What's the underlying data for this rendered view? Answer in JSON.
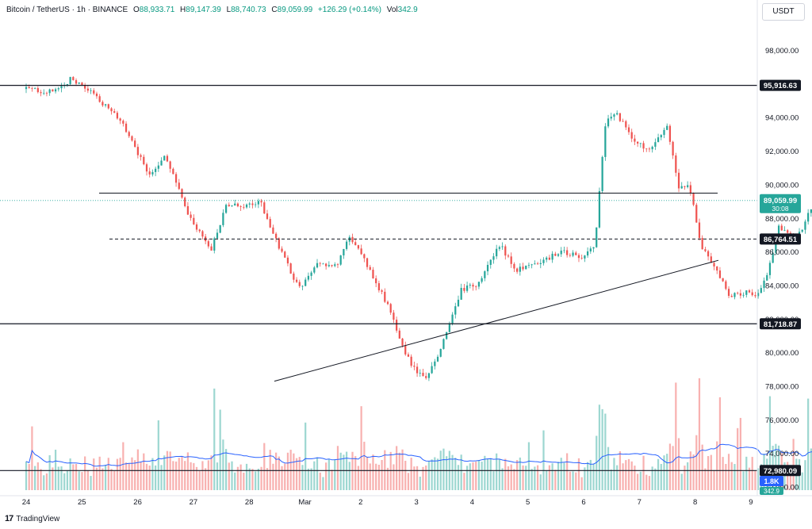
{
  "header": {
    "symbol": "Bitcoin / TetherUS · 1h · BINANCE",
    "o_label": "O",
    "o_value": "88,933.71",
    "h_label": "H",
    "h_value": "89,147.39",
    "l_label": "L",
    "l_value": "88,740.73",
    "c_label": "C",
    "c_value": "89,059.99",
    "change": "+126.29 (+0.14%)",
    "vol_label": "Vol",
    "vol_value": "342.9"
  },
  "currency_button": {
    "label": "USDT"
  },
  "footer": {
    "brand": "TradingView"
  },
  "colors": {
    "up": "#26a69a",
    "down": "#ef5350",
    "ma": "#2962ff",
    "line": "#131722"
  },
  "chart_data": {
    "type": "candlestick",
    "title": "",
    "xlabel": "",
    "ylabel": "",
    "x_ticks": [
      "24",
      "25",
      "26",
      "27",
      "28",
      "Mar",
      "2",
      "3",
      "4",
      "5",
      "6",
      "7",
      "8",
      "9"
    ],
    "y_ticks": [
      "98,000.00",
      "96,000.00",
      "94,000.00",
      "92,000.00",
      "90,000.00",
      "88,000.00",
      "86,000.00",
      "84,000.00",
      "82,000.00",
      "80,000.00",
      "78,000.00",
      "76,000.00",
      "74,000.00",
      "72,000.00",
      "70,000.00"
    ],
    "ylim": [
      69900,
      100000
    ],
    "price_path": [
      [
        0,
        95700
      ],
      [
        0.5,
        95500
      ],
      [
        0.8,
        96300
      ],
      [
        1.2,
        95400
      ],
      [
        1.7,
        93800
      ],
      [
        2.2,
        90600
      ],
      [
        2.5,
        91800
      ],
      [
        2.9,
        88200
      ],
      [
        3.1,
        87200
      ],
      [
        3.3,
        86000
      ],
      [
        3.6,
        88800
      ],
      [
        3.9,
        88700
      ],
      [
        4.2,
        89000
      ],
      [
        4.6,
        85800
      ],
      [
        4.9,
        83800
      ],
      [
        5.2,
        85200
      ],
      [
        5.6,
        85300
      ],
      [
        5.8,
        87000
      ],
      [
        6.2,
        84700
      ],
      [
        6.5,
        82700
      ],
      [
        6.8,
        80000
      ],
      [
        7.0,
        78800
      ],
      [
        7.2,
        78500
      ],
      [
        7.5,
        80800
      ],
      [
        7.8,
        83700
      ],
      [
        8.1,
        84100
      ],
      [
        8.5,
        86400
      ],
      [
        8.8,
        84900
      ],
      [
        9.2,
        85400
      ],
      [
        9.6,
        86000
      ],
      [
        10.0,
        85700
      ],
      [
        10.2,
        86400
      ],
      [
        10.4,
        93900
      ],
      [
        10.6,
        94200
      ],
      [
        10.9,
        92600
      ],
      [
        11.2,
        92000
      ],
      [
        11.5,
        93500
      ],
      [
        11.7,
        89800
      ],
      [
        11.9,
        89900
      ],
      [
        12.1,
        86400
      ],
      [
        12.4,
        84800
      ],
      [
        12.6,
        83400
      ],
      [
        12.9,
        83600
      ],
      [
        13.1,
        83300
      ],
      [
        13.3,
        84700
      ],
      [
        13.5,
        87600
      ],
      [
        13.8,
        86600
      ],
      [
        14.1,
        88700
      ],
      [
        14.4,
        89700
      ],
      [
        14.6,
        87500
      ],
      [
        14.9,
        89000
      ],
      [
        15.2,
        90600
      ],
      [
        15.5,
        92400
      ],
      [
        15.7,
        91000
      ],
      [
        16.0,
        90500
      ],
      [
        16.3,
        87700
      ],
      [
        16.6,
        89100
      ],
      [
        16.9,
        86000
      ],
      [
        17.1,
        87000
      ],
      [
        17.35,
        88800
      ]
    ],
    "candle_count": 330,
    "last_price": 89059.99,
    "horizontal_levels": [
      {
        "price": 95916.63,
        "label": "95,916.63",
        "style": "solid"
      },
      {
        "price": 86764.51,
        "label": "86,764.51",
        "style": "dashed"
      },
      {
        "price": 81718.87,
        "label": "81,718.87",
        "style": "solid"
      },
      {
        "price": 72980.09,
        "label": "72,980.09",
        "style": "solid"
      }
    ],
    "resistance_segment": {
      "price": 89500
    },
    "trendline": {
      "from": [
        78300
      ],
      "to": [
        85500
      ]
    },
    "last_price_tag": {
      "price": "89,059.99",
      "countdown": "30:08"
    },
    "volume": {
      "label": "1.8K",
      "partial_label": "342.9",
      "max": 6000
    }
  }
}
